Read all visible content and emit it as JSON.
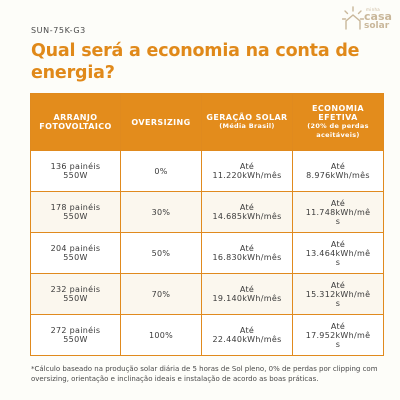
{
  "header": {
    "model": "SUN-75K-G3",
    "title": "Qual será a economia na conta de energia?"
  },
  "logo": {
    "small": "minha",
    "casa": "casa",
    "solar": "solar"
  },
  "table": {
    "columns": [
      {
        "main": "ARRANJO FOTOVOLTAICO",
        "sub": ""
      },
      {
        "main": "OVERSIZING",
        "sub": ""
      },
      {
        "main": "GERAÇÃO SOLAR",
        "sub": "(Média Brasil)"
      },
      {
        "main": "ECONOMIA EFETIVA",
        "sub": "(20% de perdas aceitáveis)"
      }
    ],
    "rows": [
      {
        "arranjo": [
          "136 painéis",
          "550W"
        ],
        "oversizing": "0%",
        "geracao": [
          "Até",
          "11.220kWh/mês"
        ],
        "economia": [
          "Até",
          "8.976kWh/mês"
        ]
      },
      {
        "arranjo": [
          "178 painéis",
          "550W"
        ],
        "oversizing": "30%",
        "geracao": [
          "Até",
          "14.685kWh/mês"
        ],
        "economia": [
          "Até",
          "11.748kWh/mê",
          "s"
        ]
      },
      {
        "arranjo": [
          "204 painéis",
          "550W"
        ],
        "oversizing": "50%",
        "geracao": [
          "Até",
          "16.830kWh/mês"
        ],
        "economia": [
          "Até",
          "13.464kWh/mê",
          "s"
        ]
      },
      {
        "arranjo": [
          "232 painéis",
          "550W"
        ],
        "oversizing": "70%",
        "geracao": [
          "Até",
          "19.140kWh/mês"
        ],
        "economia": [
          "Até",
          "15.312kWh/mê",
          "s"
        ]
      },
      {
        "arranjo": [
          "272 painéis",
          "550W"
        ],
        "oversizing": "100%",
        "geracao": [
          "Até",
          "22.440kWh/mês"
        ],
        "economia": [
          "Até",
          "17.952kWh/mê",
          "s"
        ]
      }
    ]
  },
  "footnote": "*Cálculo baseado na produção solar diária de 5 horas de Sol pleno, 0% de perdas por clipping com oversizing, orientação e inclinação ideais e instalação de acordo as boas práticas.",
  "colors": {
    "accent": "#e38c1c",
    "title": "#e0891a",
    "logo": "#c9b79a"
  }
}
